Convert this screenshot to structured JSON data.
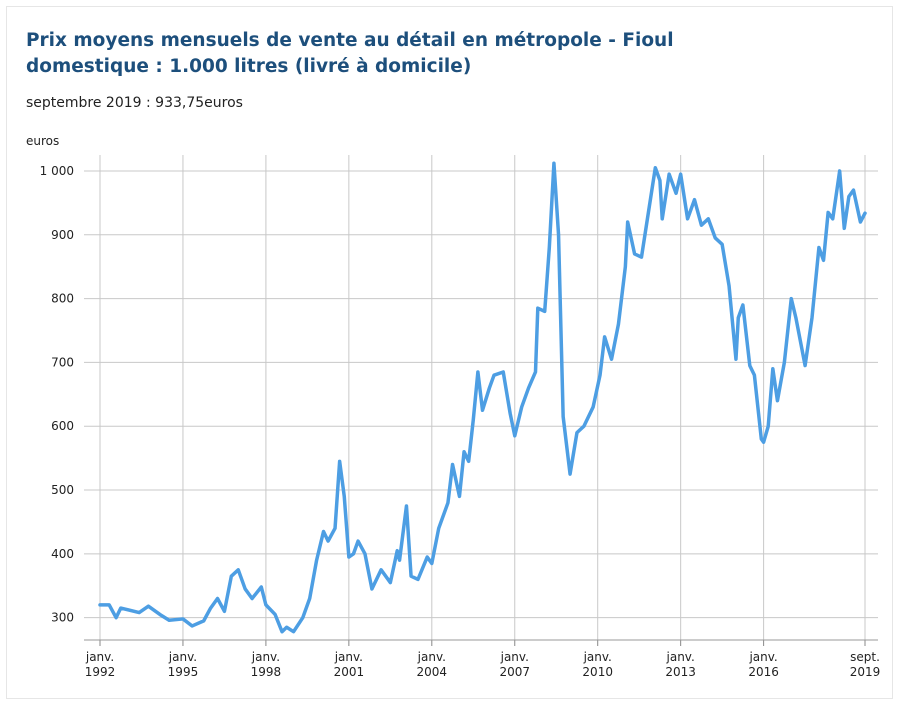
{
  "chart_data": {
    "type": "line",
    "title": [
      "Prix moyens mensuels de vente au détail en métropole - Fioul",
      "domestique : 1.000 litres (livré à domicile)"
    ],
    "subtitle": "septembre 2019 : 933,75euros",
    "y_label": "euros",
    "x": [
      "1992-01",
      "1992-05",
      "1992-08",
      "1992-10",
      "1993-06",
      "1993-10",
      "1994-03",
      "1994-07",
      "1995-01",
      "1995-05",
      "1995-10",
      "1996-01",
      "1996-04",
      "1996-07",
      "1996-10",
      "1997-01",
      "1997-04",
      "1997-07",
      "1997-11",
      "1998-01",
      "1998-05",
      "1998-08",
      "1998-10",
      "1999-01",
      "1999-05",
      "1999-08",
      "1999-11",
      "2000-02",
      "2000-04",
      "2000-07",
      "2000-09",
      "2000-11",
      "2001-01",
      "2001-03",
      "2001-05",
      "2001-08",
      "2001-11",
      "2002-03",
      "2002-07",
      "2002-10",
      "2002-11",
      "2003-02",
      "2003-04",
      "2003-07",
      "2003-11",
      "2004-01",
      "2004-04",
      "2004-08",
      "2004-10",
      "2005-01",
      "2005-03",
      "2005-05",
      "2005-07",
      "2005-09",
      "2005-11",
      "2006-02",
      "2006-04",
      "2006-08",
      "2006-11",
      "2007-01",
      "2007-04",
      "2007-07",
      "2007-10",
      "2007-11",
      "2008-02",
      "2008-04",
      "2008-06",
      "2008-08",
      "2008-10",
      "2009-01",
      "2009-04",
      "2009-07",
      "2009-11",
      "2010-02",
      "2010-04",
      "2010-07",
      "2010-10",
      "2011-01",
      "2011-02",
      "2011-05",
      "2011-08",
      "2011-11",
      "2012-02",
      "2012-04",
      "2012-05",
      "2012-08",
      "2012-11",
      "2013-01",
      "2013-04",
      "2013-07",
      "2013-10",
      "2014-01",
      "2014-04",
      "2014-07",
      "2014-10",
      "2015-01",
      "2015-02",
      "2015-04",
      "2015-07",
      "2015-09",
      "2015-12",
      "2016-01",
      "2016-03",
      "2016-05",
      "2016-07",
      "2016-10",
      "2017-01",
      "2017-03",
      "2017-07",
      "2017-10",
      "2018-01",
      "2018-03",
      "2018-05",
      "2018-07",
      "2018-10",
      "2018-12",
      "2019-02",
      "2019-04",
      "2019-07",
      "2019-09"
    ],
    "series": [
      {
        "color": "#4d9ee3",
        "values": [
          320,
          320,
          300,
          315,
          308,
          318,
          305,
          296,
          298,
          287,
          295,
          315,
          330,
          310,
          365,
          375,
          345,
          330,
          348,
          320,
          305,
          278,
          285,
          278,
          300,
          330,
          390,
          435,
          420,
          440,
          545,
          490,
          395,
          400,
          420,
          400,
          345,
          375,
          355,
          405,
          390,
          475,
          365,
          360,
          395,
          385,
          440,
          480,
          540,
          490,
          560,
          545,
          610,
          685,
          625,
          660,
          680,
          685,
          620,
          585,
          630,
          660,
          685,
          785,
          780,
          880,
          1012,
          900,
          615,
          525,
          590,
          600,
          630,
          680,
          740,
          705,
          760,
          850,
          920,
          870,
          865,
          935,
          1005,
          985,
          925,
          995,
          965,
          995,
          925,
          955,
          915,
          925,
          895,
          885,
          820,
          705,
          770,
          790,
          695,
          680,
          580,
          575,
          600,
          690,
          640,
          700,
          800,
          770,
          695,
          770,
          880,
          860,
          935,
          925,
          1000,
          910,
          960,
          970,
          920,
          933.75
        ]
      }
    ],
    "xlim": [
      "1992-01",
      "2019-09"
    ],
    "xticks": [
      {
        "value": "1992-01",
        "label": [
          "janv.",
          "1992"
        ]
      },
      {
        "value": "1995-01",
        "label": [
          "janv.",
          "1995"
        ]
      },
      {
        "value": "1998-01",
        "label": [
          "janv.",
          "1998"
        ]
      },
      {
        "value": "2001-01",
        "label": [
          "janv.",
          "2001"
        ]
      },
      {
        "value": "2004-01",
        "label": [
          "janv.",
          "2004"
        ]
      },
      {
        "value": "2007-01",
        "label": [
          "janv.",
          "2007"
        ]
      },
      {
        "value": "2010-01",
        "label": [
          "janv.",
          "2010"
        ]
      },
      {
        "value": "2013-01",
        "label": [
          "janv.",
          "2013"
        ]
      },
      {
        "value": "2016-01",
        "label": [
          "janv.",
          "2016"
        ]
      },
      {
        "value": "2019-09",
        "label": [
          "sept.",
          "2019"
        ]
      }
    ],
    "ylim": [
      265,
      1025
    ],
    "yticks": [
      300,
      400,
      500,
      600,
      700,
      800,
      900,
      {
        "value": 1000,
        "label": "1 000"
      }
    ],
    "grid": true
  }
}
